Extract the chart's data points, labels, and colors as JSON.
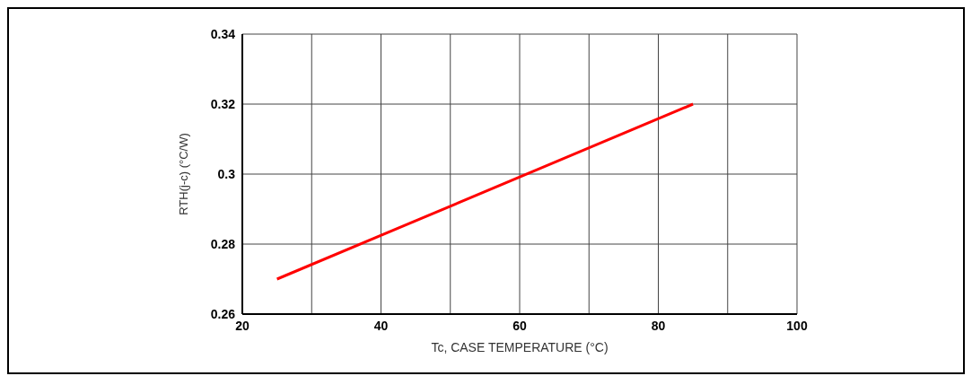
{
  "chart_data": {
    "type": "line",
    "xlabel": "Tc, CASE TEMPERATURE (°C)",
    "ylabel": "RTH(j-c) (°C/W)",
    "x": [
      25,
      85
    ],
    "series": [
      {
        "color": "#ff0000",
        "values": [
          0.27,
          0.32
        ]
      }
    ],
    "xlim": [
      20,
      100
    ],
    "xticks": [
      20,
      {
        "value": 30,
        "label": null
      },
      40,
      {
        "value": 50,
        "label": null
      },
      60,
      {
        "value": 70,
        "label": null
      },
      80,
      {
        "value": 90,
        "label": null
      },
      100
    ],
    "ylim": [
      0.26,
      0.34
    ],
    "yticks": [
      0.26,
      0.28,
      0.3,
      0.32,
      0.34
    ],
    "grid": true,
    "legend": false,
    "marker": "none",
    "line_style": "solid"
  }
}
